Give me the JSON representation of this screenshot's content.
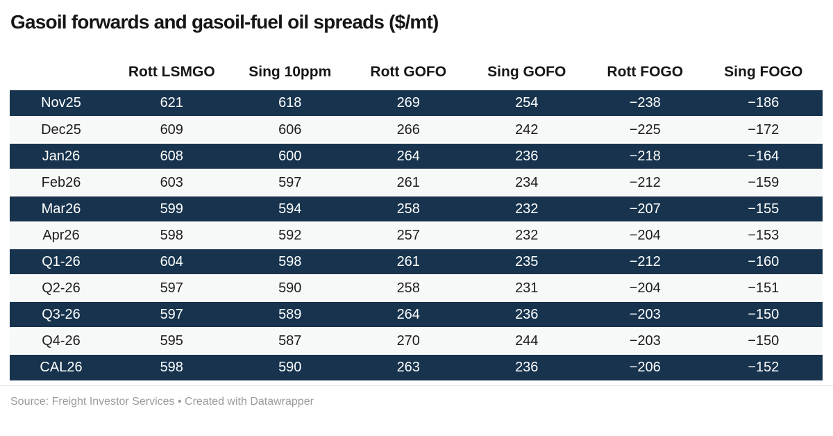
{
  "title": "Gasoil forwards and gasoil-fuel oil spreads ($/mt)",
  "table": {
    "header": [
      "",
      "Rott LSMGO",
      "Sing 10ppm",
      "Rott GOFO",
      "Sing GOFO",
      "Rott FOGO",
      "Sing FOGO"
    ],
    "rows": [
      {
        "label": "Nov25",
        "values": [
          "621",
          "618",
          "269",
          "254",
          "−238",
          "−186"
        ]
      },
      {
        "label": "Dec25",
        "values": [
          "609",
          "606",
          "266",
          "242",
          "−225",
          "−172"
        ]
      },
      {
        "label": "Jan26",
        "values": [
          "608",
          "600",
          "264",
          "236",
          "−218",
          "−164"
        ]
      },
      {
        "label": "Feb26",
        "values": [
          "603",
          "597",
          "261",
          "234",
          "−212",
          "−159"
        ]
      },
      {
        "label": "Mar26",
        "values": [
          "599",
          "594",
          "258",
          "232",
          "−207",
          "−155"
        ]
      },
      {
        "label": "Apr26",
        "values": [
          "598",
          "592",
          "257",
          "232",
          "−204",
          "−153"
        ]
      },
      {
        "label": "Q1-26",
        "values": [
          "604",
          "598",
          "261",
          "235",
          "−212",
          "−160"
        ]
      },
      {
        "label": "Q2-26",
        "values": [
          "597",
          "590",
          "258",
          "231",
          "−204",
          "−151"
        ]
      },
      {
        "label": "Q3-26",
        "values": [
          "597",
          "589",
          "264",
          "236",
          "−203",
          "−150"
        ]
      },
      {
        "label": "Q4-26",
        "values": [
          "595",
          "587",
          "270",
          "244",
          "−203",
          "−150"
        ]
      },
      {
        "label": "CAL26",
        "values": [
          "598",
          "590",
          "263",
          "236",
          "−206",
          "−152"
        ]
      }
    ]
  },
  "footer": {
    "source_text": "Source: Freight Investor Services",
    "separator": " • ",
    "attribution": "Created with Datawrapper"
  },
  "colors": {
    "row_dark": "#17334d",
    "row_light": "#f7f8f8",
    "text_on_dark": "#ffffff",
    "body_text_dark": "#1d1d1d",
    "title_text": "#161616",
    "footer_text": "#9a9a9a",
    "rule": "#e6e6e6"
  },
  "chart_data": {
    "type": "table",
    "title": "Gasoil forwards and gasoil-fuel oil spreads ($/mt)",
    "columns": [
      "Rott LSMGO",
      "Sing 10ppm",
      "Rott GOFO",
      "Sing GOFO",
      "Rott FOGO",
      "Sing FOGO"
    ],
    "row_labels": [
      "Nov25",
      "Dec25",
      "Jan26",
      "Feb26",
      "Mar26",
      "Apr26",
      "Q1-26",
      "Q2-26",
      "Q3-26",
      "Q4-26",
      "CAL26"
    ],
    "values": [
      [
        621,
        618,
        269,
        254,
        -238,
        -186
      ],
      [
        609,
        606,
        266,
        242,
        -225,
        -172
      ],
      [
        608,
        600,
        264,
        236,
        -218,
        -164
      ],
      [
        603,
        597,
        261,
        234,
        -212,
        -159
      ],
      [
        599,
        594,
        258,
        232,
        -207,
        -155
      ],
      [
        598,
        592,
        257,
        232,
        -204,
        -153
      ],
      [
        604,
        598,
        261,
        235,
        -212,
        -160
      ],
      [
        597,
        590,
        258,
        231,
        -204,
        -151
      ],
      [
        597,
        589,
        264,
        236,
        -203,
        -150
      ],
      [
        595,
        587,
        270,
        244,
        -203,
        -150
      ],
      [
        598,
        590,
        263,
        236,
        -206,
        -152
      ]
    ],
    "units": "$/mt",
    "source": "Freight Investor Services",
    "tool": "Datawrapper",
    "style": {
      "alternating_rows": true,
      "dark_row_color": "#17334d",
      "light_row_color": "#f7f8f8"
    }
  }
}
